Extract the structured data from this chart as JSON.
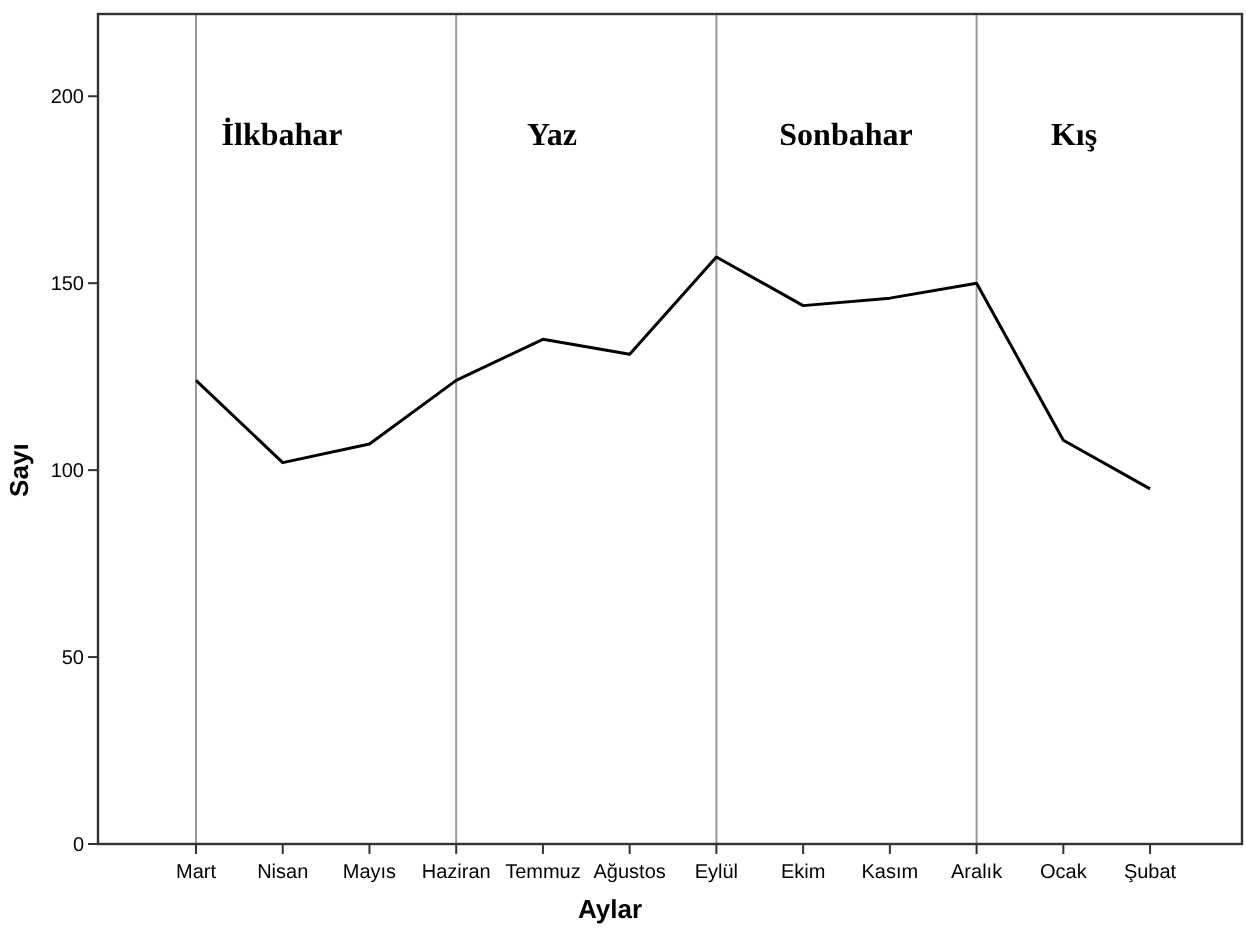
{
  "chart_data": {
    "type": "line",
    "xlabel": "Aylar",
    "ylabel": "Sayı",
    "categories": [
      "Mart",
      "Nisan",
      "Mayıs",
      "Haziran",
      "Temmuz",
      "Ağustos",
      "Eylül",
      "Ekim",
      "Kasım",
      "Aralık",
      "Ocak",
      "Şubat"
    ],
    "series": [
      {
        "color": "#000000",
        "values": [
          124,
          102,
          107,
          124,
          135,
          131,
          157,
          144,
          146,
          150,
          108,
          95
        ]
      }
    ],
    "ylim": [
      0,
      222
    ],
    "yticks": [
      0,
      50,
      100,
      150,
      200
    ],
    "grid": false,
    "marker": "none",
    "line_style": "solid",
    "ref_lines": [
      {
        "axis": "x",
        "value": "Mart",
        "color": "#999999"
      },
      {
        "axis": "x",
        "value": "Haziran",
        "color": "#999999"
      },
      {
        "axis": "x",
        "value": "Eylül",
        "color": "#999999"
      },
      {
        "axis": "x",
        "value": "Aralık",
        "color": "#999999"
      }
    ],
    "annotations": [
      "İlkbahar",
      "Yaz",
      "Sonbahar",
      "Kış"
    ]
  }
}
